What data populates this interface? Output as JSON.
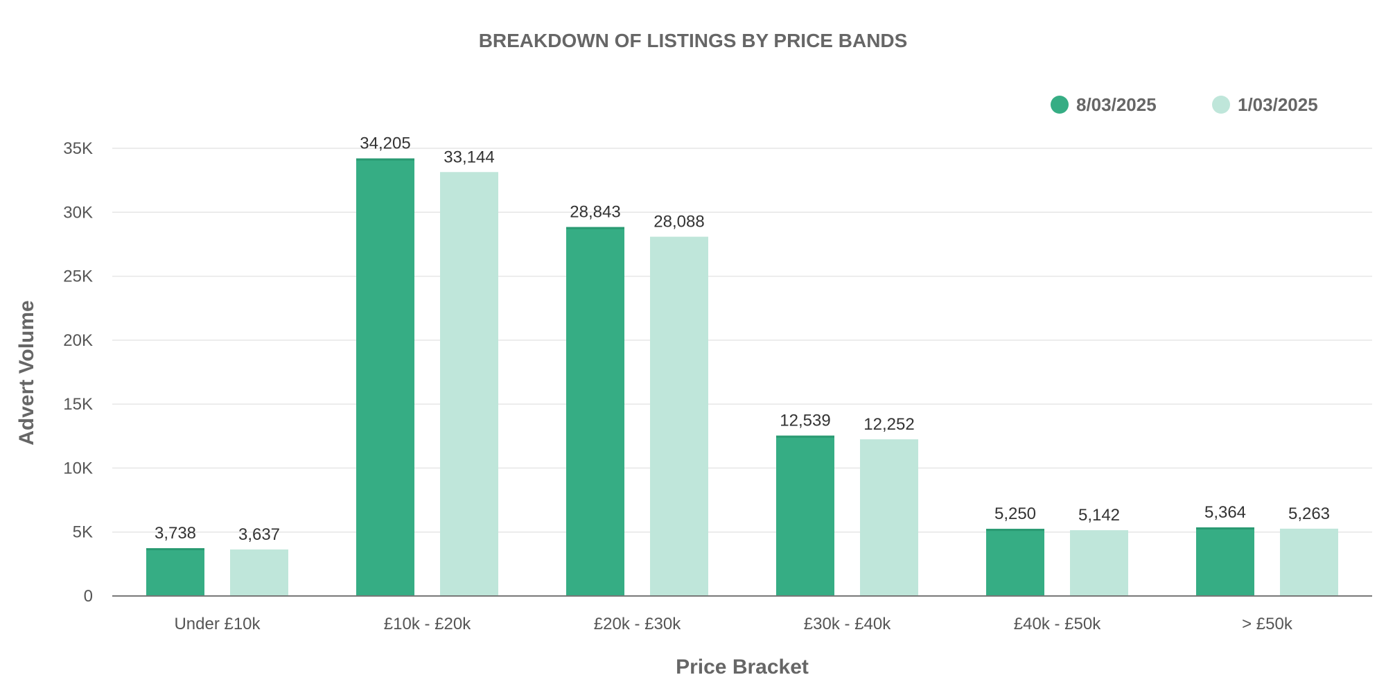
{
  "chart_data": {
    "type": "bar",
    "title": "BREAKDOWN OF LISTINGS BY PRICE BANDS",
    "xlabel": "Price Bracket",
    "ylabel": "Advert Volume",
    "categories": [
      "Under £10k",
      "£10k - £20k",
      "£20k - £30k",
      "£30k - £40k",
      "£40k - £50k",
      "> £50k"
    ],
    "series": [
      {
        "name": "8/03/2025",
        "color": "#36ad84",
        "values": [
          3738,
          34205,
          28843,
          12539,
          5250,
          5364
        ],
        "labels": [
          "3,738",
          "34,205",
          "28,843",
          "12,539",
          "5,250",
          "5,364"
        ]
      },
      {
        "name": "1/03/2025",
        "color": "#bfe6da",
        "values": [
          3637,
          33144,
          28088,
          12252,
          5142,
          5263
        ],
        "labels": [
          "3,637",
          "33,144",
          "28,088",
          "12,252",
          "5,142",
          "5,263"
        ]
      }
    ],
    "ylim": [
      0,
      35000
    ],
    "yticks": [
      0,
      5000,
      10000,
      15000,
      20000,
      25000,
      30000,
      35000
    ],
    "ytick_labels": [
      "0",
      "5K",
      "10K",
      "15K",
      "20K",
      "25K",
      "30K",
      "35K"
    ],
    "grid": true,
    "legend_position": "top-right"
  }
}
